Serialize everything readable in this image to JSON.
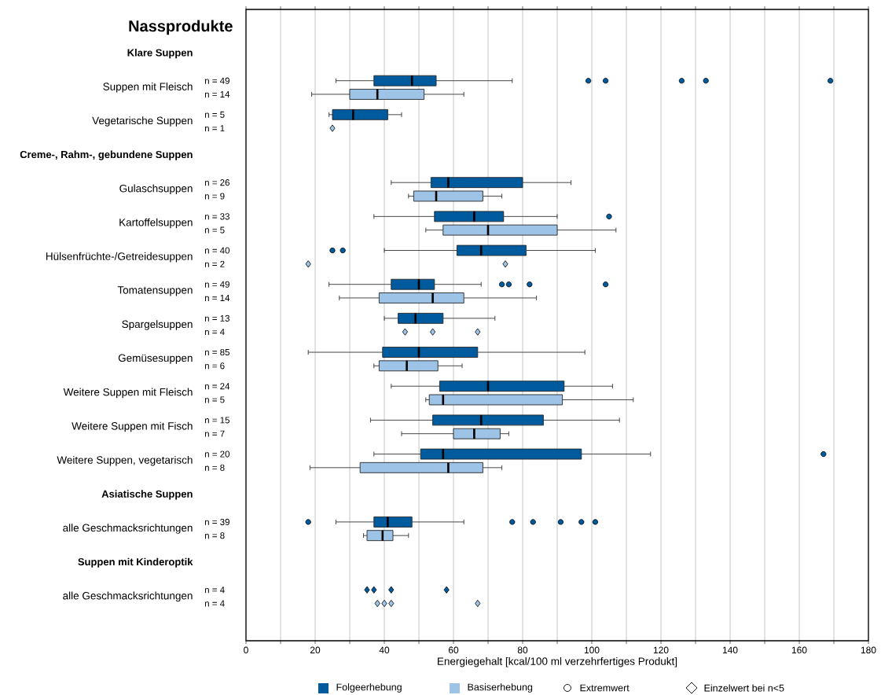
{
  "chart_data": {
    "type": "box",
    "orientation": "horizontal",
    "title": "Nassprodukte",
    "xlabel": "Energiegehalt [kcal/100 ml verzehrfertiges Produkt]",
    "categories": [
      "Klare Suppen",
      "Suppen mit Fleisch",
      "Vegetarische Suppen",
      "Creme-, Rahm-, gebundene Suppen",
      "Gulaschsuppen",
      "Kartoffelsuppen",
      "Hülsenfrüchte-/Getreidesuppen",
      "Tomatensuppen",
      "Spargelsuppen",
      "Gemüsesuppen",
      "Weitere Suppen mit Fleisch",
      "Weitere Suppen mit Fisch",
      "Weitere Suppen, vegetarisch",
      "Asiatische Suppen",
      "alle Geschmacksrichtungen",
      "Suppen mit Kinderoptik",
      "alle Geschmacksrichtungen"
    ],
    "xlim": [
      0,
      180
    ],
    "xticks": [
      0,
      {
        "value": 10,
        "label": null
      },
      20,
      {
        "value": 30,
        "label": null
      },
      40,
      {
        "value": 50,
        "label": null
      },
      60,
      {
        "value": 70,
        "label": null
      },
      80,
      {
        "value": 90,
        "label": null
      },
      100,
      {
        "value": 110,
        "label": null
      },
      120,
      {
        "value": 130,
        "label": null
      },
      140,
      {
        "value": 150,
        "label": null
      },
      160,
      {
        "value": 170,
        "label": null
      },
      180
    ],
    "grid": "x",
    "legend": "bottom",
    "annotations": [
      "Extremwert",
      "Einzelwert bei n<5"
    ],
    "series": [
      {
        "name": "Folgeerhebung",
        "color": "#005a9e",
        "value_labels": [
          null,
          "n = 49",
          "n = 5",
          null,
          "n = 26",
          "n = 33",
          "n = 40",
          "n = 49",
          "n = 13",
          "n = 85",
          "n = 24",
          "n = 15",
          "n = 20",
          null,
          "n = 39",
          null,
          "n = 4"
        ],
        "boxes": [
          null,
          {
            "low": 26,
            "q1": 37,
            "median": 48,
            "q3": 55,
            "high": 77,
            "outliers": [
              99,
              104,
              126,
              133,
              169
            ]
          },
          {
            "low": 24,
            "q1": 25,
            "median": 31,
            "q3": 41,
            "high": 45
          },
          null,
          {
            "low": 42,
            "q1": 53.5,
            "median": 58.5,
            "q3": 80,
            "high": 94
          },
          {
            "low": 37,
            "q1": 54.5,
            "median": 66,
            "q3": 74.5,
            "high": 90,
            "outliers": [
              105
            ]
          },
          {
            "low": 40,
            "q1": 61,
            "median": 68,
            "q3": 81,
            "high": 101,
            "outliers": [
              25,
              28
            ]
          },
          {
            "low": 24,
            "q1": 42,
            "median": 50,
            "q3": 54.5,
            "high": 68,
            "outliers": [
              74,
              76,
              82,
              104
            ]
          },
          {
            "low": 40,
            "q1": 44,
            "median": 49,
            "q3": 57,
            "high": 72
          },
          {
            "low": 18,
            "q1": 39.5,
            "median": 50,
            "q3": 67,
            "high": 98
          },
          {
            "low": 42,
            "q1": 56,
            "median": 70,
            "q3": 92,
            "high": 106
          },
          {
            "low": 36,
            "q1": 54,
            "median": 68,
            "q3": 86,
            "high": 108
          },
          {
            "low": 37,
            "q1": 50.5,
            "median": 57,
            "q3": 97,
            "high": 117,
            "outliers": [
              167
            ]
          },
          null,
          {
            "low": 26,
            "q1": 37,
            "median": 41,
            "q3": 48,
            "high": 63,
            "outliers": [
              18,
              77,
              83,
              91,
              97,
              101
            ]
          },
          null,
          null
        ]
      },
      {
        "name": "Basiserhebung",
        "color": "#9dc3e6",
        "value_labels": [
          null,
          "n = 14",
          "n = 1",
          null,
          "n = 9",
          "n = 5",
          "n = 2",
          "n = 14",
          "n = 4",
          "n = 6",
          "n = 5",
          "n = 7",
          "n = 8",
          null,
          "n = 8",
          null,
          "n = 4"
        ],
        "boxes": [
          null,
          {
            "low": 19,
            "q1": 30,
            "median": 38,
            "q3": 51.5,
            "high": 63
          },
          null,
          null,
          {
            "low": 47,
            "q1": 48.5,
            "median": 55,
            "q3": 68.5,
            "high": 74
          },
          {
            "low": 52,
            "q1": 57,
            "median": 70,
            "q3": 90,
            "high": 107
          },
          null,
          {
            "low": 27,
            "q1": 38.5,
            "median": 54,
            "q3": 63,
            "high": 84
          },
          null,
          {
            "low": 37,
            "q1": 38.5,
            "median": 46.5,
            "q3": 55.5,
            "high": 62.5
          },
          {
            "low": 52,
            "q1": 53,
            "median": 57,
            "q3": 91.5,
            "high": 112
          },
          {
            "low": 45,
            "q1": 60,
            "median": 66,
            "q3": 73.5,
            "high": 76
          },
          {
            "low": 18.5,
            "q1": 33,
            "median": 58.5,
            "q3": 68.5,
            "high": 74
          },
          null,
          {
            "low": 34,
            "q1": 35,
            "median": 39.5,
            "q3": 42.5,
            "high": 47
          },
          null,
          null
        ]
      },
      {
        "type": "scatter",
        "marker": "diamond",
        "color": "#9dc3e6",
        "x": [
          "Vegetarische Suppen",
          "Hülsenfrüchte-/Getreidesuppen",
          "Hülsenfrüchte-/Getreidesuppen",
          "Spargelsuppen",
          "Spargelsuppen",
          "Spargelsuppen"
        ],
        "values": [
          25,
          18,
          75,
          46,
          54,
          67
        ]
      },
      {
        "type": "scatter",
        "marker": "diamond",
        "color": "#005a9e",
        "values": [
          null,
          null,
          null,
          null,
          null,
          null,
          null,
          null,
          null,
          null,
          null,
          null,
          null,
          null,
          null,
          null,
          35
        ]
      },
      {
        "type": "scatter",
        "marker": "diamond",
        "color": "#005a9e",
        "values": [
          null,
          null,
          null,
          null,
          null,
          null,
          null,
          null,
          null,
          null,
          null,
          null,
          null,
          null,
          null,
          null,
          37
        ]
      },
      {
        "type": "scatter",
        "marker": "diamond",
        "color": "#005a9e",
        "values": [
          null,
          null,
          null,
          null,
          null,
          null,
          null,
          null,
          null,
          null,
          null,
          null,
          null,
          null,
          null,
          null,
          42
        ]
      },
      {
        "type": "scatter",
        "marker": "diamond",
        "color": "#005a9e",
        "values": [
          null,
          null,
          null,
          null,
          null,
          null,
          null,
          null,
          null,
          null,
          null,
          null,
          null,
          null,
          null,
          null,
          58
        ]
      },
      {
        "type": "scatter",
        "marker": "diamond",
        "color": "#9dc3e6",
        "values": [
          null,
          null,
          null,
          null,
          null,
          null,
          null,
          null,
          null,
          null,
          null,
          null,
          null,
          null,
          null,
          null,
          38
        ]
      },
      {
        "type": "scatter",
        "marker": "diamond",
        "color": "#9dc3e6",
        "values": [
          null,
          null,
          null,
          null,
          null,
          null,
          null,
          null,
          null,
          null,
          null,
          null,
          null,
          null,
          null,
          null,
          40
        ]
      },
      {
        "type": "scatter",
        "marker": "diamond",
        "color": "#9dc3e6",
        "values": [
          null,
          null,
          null,
          null,
          null,
          null,
          null,
          null,
          null,
          null,
          null,
          null,
          null,
          null,
          null,
          null,
          42
        ]
      },
      {
        "type": "scatter",
        "marker": "diamond",
        "color": "#9dc3e6",
        "values": [
          null,
          null,
          null,
          null,
          null,
          null,
          null,
          null,
          null,
          null,
          null,
          null,
          null,
          null,
          null,
          null,
          67
        ]
      }
    ]
  }
}
